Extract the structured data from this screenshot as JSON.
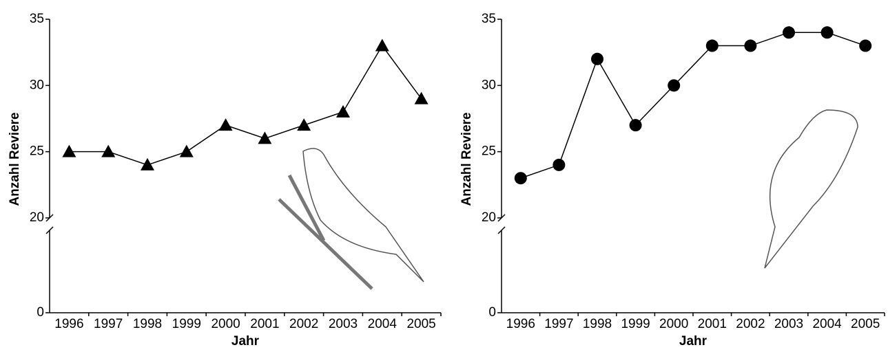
{
  "chart_data": [
    {
      "type": "line",
      "marker": "triangle",
      "color": "#000000",
      "x_label": "Jahr",
      "y_label": "Anzahl Reviere",
      "categories": [
        "1996",
        "1997",
        "1998",
        "1999",
        "2000",
        "2001",
        "2002",
        "2003",
        "2004",
        "2005"
      ],
      "values": [
        25,
        25,
        24,
        25,
        27,
        26,
        27,
        28,
        33,
        29
      ],
      "ylim": [
        0,
        35
      ],
      "yticks": [
        0,
        20,
        25,
        30,
        35
      ],
      "axis_break": [
        0,
        20
      ]
    },
    {
      "type": "line",
      "marker": "circle",
      "color": "#000000",
      "x_label": "Jahr",
      "y_label": "Anzahl Reviere",
      "categories": [
        "1996",
        "1997",
        "1998",
        "1999",
        "2000",
        "2001",
        "2002",
        "2003",
        "2004",
        "2005"
      ],
      "values": [
        23,
        24,
        32,
        27,
        30,
        33,
        33,
        34,
        34,
        33
      ],
      "ylim": [
        0,
        35
      ],
      "yticks": [
        0,
        20,
        25,
        30,
        35
      ],
      "axis_break": [
        0,
        20
      ]
    }
  ]
}
